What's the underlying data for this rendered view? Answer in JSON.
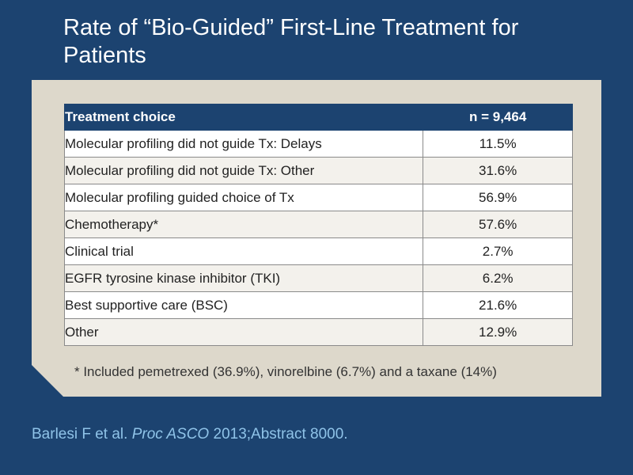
{
  "slide": {
    "title": "Rate of “Bio-Guided” First-Line Treatment for Patients"
  },
  "table": {
    "headers": [
      "Treatment choice",
      "n = 9,464"
    ],
    "rows": [
      {
        "label": "Molecular profiling did not guide Tx: Delays",
        "value": "11.5%"
      },
      {
        "label": "Molecular profiling did not guide Tx: Other",
        "value": "31.6%"
      },
      {
        "label": "Molecular profiling guided choice of Tx",
        "value": "56.9%"
      },
      {
        "label": "Chemotherapy*",
        "value": "57.6%"
      },
      {
        "label": "Clinical trial",
        "value": "2.7%"
      },
      {
        "label": "EGFR tyrosine kinase inhibitor (TKI)",
        "value": "6.2%"
      },
      {
        "label": "Best supportive care (BSC)",
        "value": "21.6%"
      },
      {
        "label": "Other",
        "value": "12.9%"
      }
    ]
  },
  "footnote": "* Included pemetrexed (36.9%), vinorelbine (6.7%) and a taxane (14%)",
  "citation": {
    "authors": "Barlesi F et al.",
    "journal": "Proc ASCO",
    "details": "2013;Abstract 8000."
  },
  "colors": {
    "background": "#1c4370",
    "panel": "#ddd8cb",
    "citation": "#8fc3e8"
  }
}
